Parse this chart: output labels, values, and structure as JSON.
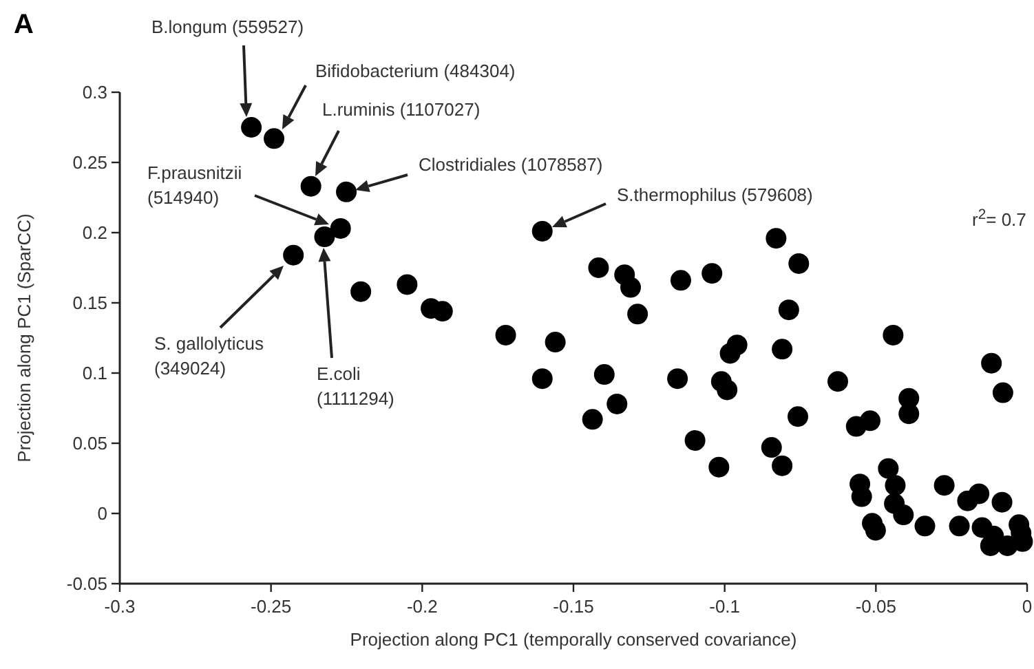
{
  "chart_data": {
    "type": "scatter",
    "xlabel": "Projection along PC1 (temporally conserved covariance)",
    "ylabel": "Projection along PC1 (SparCC)",
    "xlim": [
      -0.3,
      0
    ],
    "ylim": [
      -0.05,
      0.3
    ],
    "xticks": [
      -0.3,
      -0.25,
      -0.2,
      -0.15,
      -0.1,
      -0.05,
      0
    ],
    "yticks": [
      -0.05,
      0,
      0.05,
      0.1,
      0.15,
      0.2,
      0.25,
      0.3
    ],
    "grid": false,
    "marker": "circle",
    "series": [
      {
        "color": "#000000",
        "x": [
          -0.2565,
          -0.249,
          -0.2368,
          -0.2251,
          -0.227,
          -0.2323,
          -0.1603,
          -0.2426,
          -0.2203,
          -0.205,
          -0.1971,
          -0.1933,
          -0.1724,
          -0.156,
          -0.1603,
          -0.083,
          -0.0755,
          -0.1417,
          -0.1331,
          -0.1311,
          -0.1145,
          -0.1042,
          -0.1288,
          -0.0788,
          -0.0443,
          -0.0959,
          -0.0982,
          -0.081,
          -0.0118,
          -0.008,
          -0.1398,
          -0.1156,
          -0.1011,
          -0.0992,
          -0.0626,
          -0.1356,
          -0.1437,
          -0.0758,
          -0.0391,
          -0.0391,
          -0.0519,
          -0.0565,
          -0.1098,
          -0.0845,
          -0.1019,
          -0.081,
          -0.0459,
          -0.0553,
          -0.0547,
          -0.0436,
          -0.0439,
          -0.0409,
          -0.0512,
          -0.0501,
          -0.0338,
          -0.0274,
          -0.0224,
          -0.0197,
          -0.0159,
          -0.0083,
          -0.0149,
          -0.0111,
          -0.0121,
          -0.0065,
          -0.0027,
          -0.002,
          -0.0015
        ],
        "values": [
          0.275,
          0.267,
          0.233,
          0.229,
          0.203,
          0.197,
          0.201,
          0.184,
          0.158,
          0.163,
          0.146,
          0.144,
          0.127,
          0.122,
          0.096,
          0.196,
          0.178,
          0.175,
          0.17,
          0.161,
          0.166,
          0.171,
          0.142,
          0.145,
          0.127,
          0.12,
          0.114,
          0.117,
          0.107,
          0.086,
          0.099,
          0.096,
          0.094,
          0.088,
          0.094,
          0.078,
          0.067,
          0.069,
          0.082,
          0.071,
          0.066,
          0.062,
          0.052,
          0.047,
          0.033,
          0.034,
          0.032,
          0.021,
          0.012,
          0.02,
          0.007,
          -0.001,
          -0.007,
          -0.012,
          -0.009,
          0.02,
          -0.009,
          0.009,
          0.014,
          0.008,
          -0.01,
          -0.016,
          -0.023,
          -0.023,
          -0.008,
          -0.014,
          -0.02
        ]
      }
    ],
    "annotations": [
      "B.longum (559527)",
      "Bifidobacterium (484304)",
      "L.ruminis (1107027)",
      "Clostridiales (1078587)",
      "F.prausnitzii\n(514940)",
      "S.thermophilus (579608)",
      "S. gallolyticus\n(349024)",
      "E.coli\n(1111294)",
      "r$^{2}$= 0.7",
      "A"
    ]
  }
}
